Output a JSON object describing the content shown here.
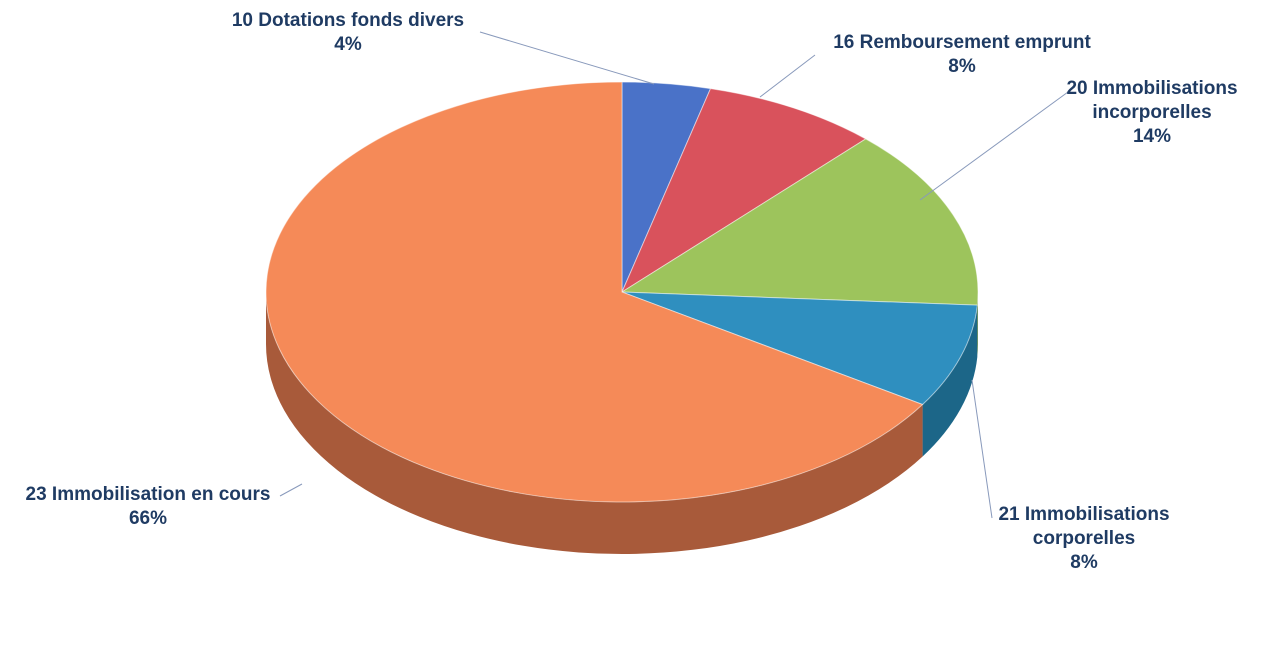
{
  "chart_data": {
    "type": "pie",
    "title": "",
    "slices": [
      {
        "category": "10 Dotations fonds divers",
        "value": 4,
        "label_lines": [
          "10 Dotations fonds divers"
        ],
        "pct": "4%",
        "color": "#4a72c8"
      },
      {
        "category": "16 Remboursement emprunt",
        "value": 8,
        "label_lines": [
          "16 Remboursement emprunt"
        ],
        "pct": "8%",
        "color": "#d9525c"
      },
      {
        "category": "20 Immobilisations incorporelles",
        "value": 14,
        "label_lines": [
          "20 Immobilisations",
          "incorporelles"
        ],
        "pct": "14%",
        "color": "#9dc45c"
      },
      {
        "category": "21 Immobilisations corporelles",
        "value": 8,
        "label_lines": [
          "21 Immobilisations",
          "corporelles"
        ],
        "pct": "8%",
        "color": "#2f8fbf"
      },
      {
        "category": "23 Immobilisation en cours",
        "value": 66,
        "label_lines": [
          "23 Immobilisation en cours"
        ],
        "pct": "66%",
        "color": "#f58a58"
      }
    ],
    "slice_side_colors": [
      "#2e4f90",
      "#983040",
      "#6d8c38",
      "#1c6688",
      "#a85a3a"
    ],
    "label_color": "#1f3b63",
    "leader_line_color": "#8899bb",
    "legend": "none",
    "depth_3d": true
  }
}
